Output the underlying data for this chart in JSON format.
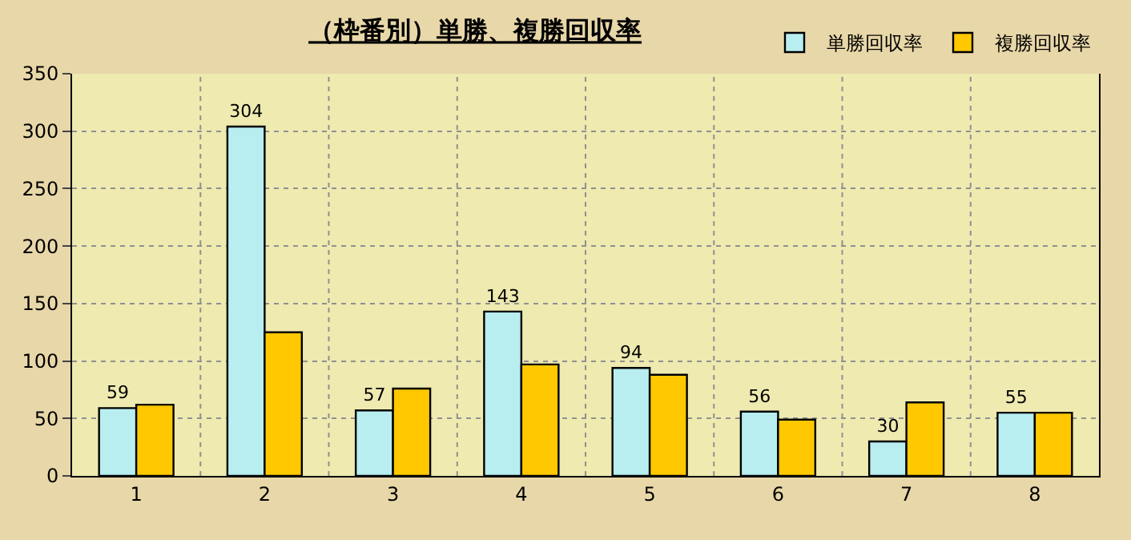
{
  "chart_data": {
    "type": "bar",
    "title": "（枠番別）単勝、複勝回収率",
    "categories": [
      "1",
      "2",
      "3",
      "4",
      "5",
      "6",
      "7",
      "8"
    ],
    "series": [
      {
        "name": "単勝回収率",
        "color": "#b8eef0",
        "values": [
          59,
          304,
          57,
          143,
          94,
          56,
          30,
          55
        ],
        "value_labels": [
          "59",
          "304",
          "57",
          "143",
          "94",
          "56",
          "30",
          "55"
        ]
      },
      {
        "name": "複勝回収率",
        "color": "#ffc800",
        "values": [
          62,
          125,
          76,
          97,
          88,
          49,
          64,
          55
        ]
      }
    ],
    "ylim": [
      0,
      350
    ],
    "yticks": [
      0,
      50,
      100,
      150,
      200,
      250,
      300,
      350
    ],
    "grid": true,
    "legend": "top right"
  }
}
